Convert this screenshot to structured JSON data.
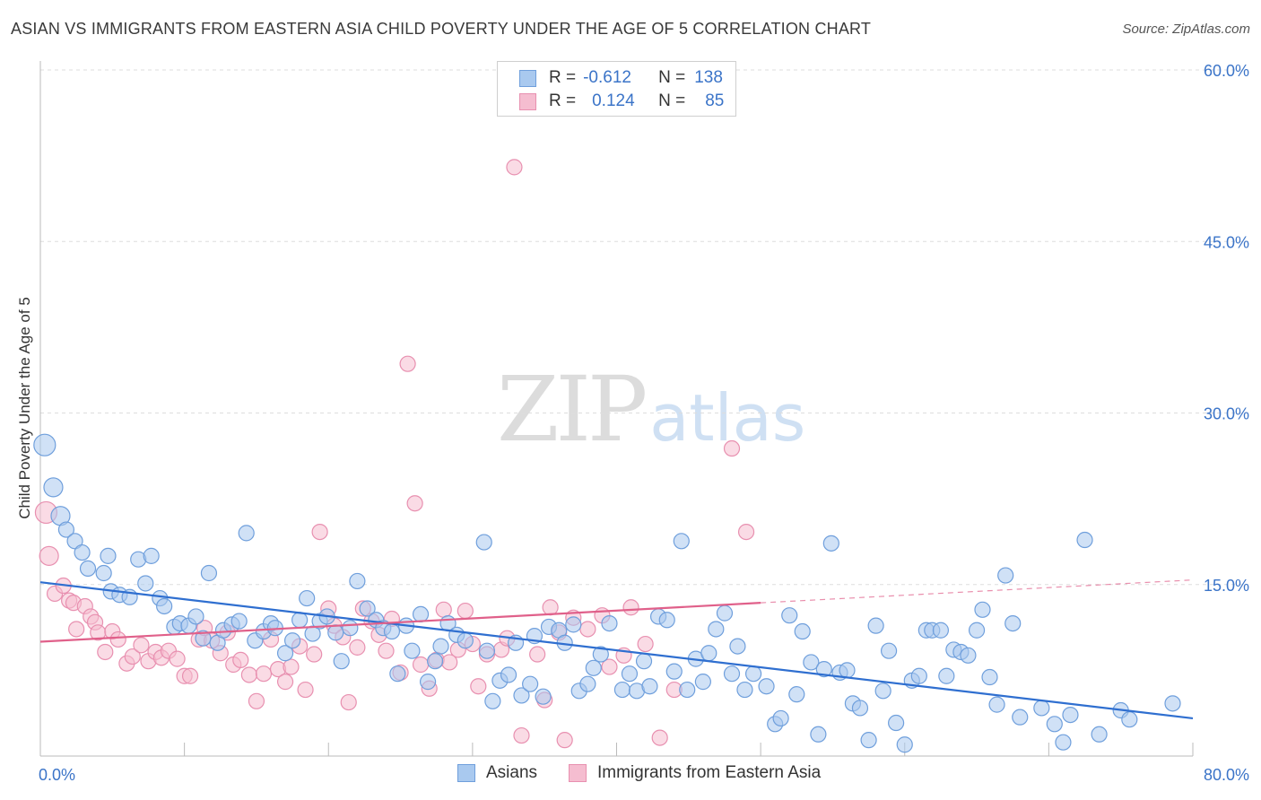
{
  "title": "ASIAN VS IMMIGRANTS FROM EASTERN ASIA CHILD POVERTY UNDER THE AGE OF 5 CORRELATION CHART",
  "source": "Source: ZipAtlas.com",
  "watermark": {
    "zip": "ZIP",
    "atlas": "atlas"
  },
  "legend_top": {
    "rows": [
      {
        "r_label": "R =",
        "r_value": "-0.612",
        "n_label": "N =",
        "n_value": "138"
      },
      {
        "r_label": "R =",
        "r_value": "0.124",
        "n_label": "N =",
        "n_value": "85"
      }
    ]
  },
  "colors": {
    "blue_fill": "#a9c9ef",
    "blue_stroke": "#6f9fdc",
    "blue_line": "#2f6fd0",
    "pink_fill": "#f5bdd0",
    "pink_stroke": "#e890b0",
    "pink_line": "#e0608a",
    "grid": "#dddddd",
    "tick_text": "#3b74c8"
  },
  "chart_data": {
    "type": "scatter",
    "title": "ASIAN VS IMMIGRANTS FROM EASTERN ASIA CHILD POVERTY UNDER THE AGE OF 5 CORRELATION CHART",
    "xlabel": "",
    "ylabel": "Child Poverty Under the Age of 5",
    "xlim": [
      0,
      80
    ],
    "ylim": [
      0,
      60
    ],
    "x_tick_labels": [
      "0.0%",
      "80.0%"
    ],
    "y_ticks": [
      15,
      30,
      45,
      60
    ],
    "y_tick_labels": [
      "15.0%",
      "30.0%",
      "45.0%",
      "60.0%"
    ],
    "grid": true,
    "legend_position": "top-center",
    "series": [
      {
        "name": "Asians",
        "color": "#6f9fdc",
        "R": -0.612,
        "N": 138,
        "trend": {
          "x": [
            0,
            80
          ],
          "y": [
            15.2,
            3.3
          ]
        },
        "points": [
          [
            0.3,
            27.2
          ],
          [
            0.9,
            23.5
          ],
          [
            1.4,
            21
          ],
          [
            1.8,
            19.8
          ],
          [
            2.4,
            18.8
          ],
          [
            2.9,
            17.8
          ],
          [
            3.3,
            16.4
          ],
          [
            4.4,
            16
          ],
          [
            4.7,
            17.5
          ],
          [
            4.9,
            14.4
          ],
          [
            5.5,
            14.1
          ],
          [
            6.2,
            13.9
          ],
          [
            6.8,
            17.2
          ],
          [
            7.3,
            15.1
          ],
          [
            7.7,
            17.5
          ],
          [
            8.3,
            13.8
          ],
          [
            8.6,
            13.1
          ],
          [
            9.3,
            11.3
          ],
          [
            9.7,
            11.6
          ],
          [
            10.3,
            11.4
          ],
          [
            10.8,
            12.2
          ],
          [
            11.3,
            10.3
          ],
          [
            11.7,
            16
          ],
          [
            12.3,
            9.9
          ],
          [
            12.7,
            11
          ],
          [
            13.3,
            11.5
          ],
          [
            13.8,
            11.8
          ],
          [
            14.3,
            19.5
          ],
          [
            14.9,
            10.1
          ],
          [
            15.5,
            10.9
          ],
          [
            16.0,
            11.6
          ],
          [
            16.3,
            11.2
          ],
          [
            17.0,
            9.0
          ],
          [
            17.5,
            10.1
          ],
          [
            18.0,
            11.9
          ],
          [
            18.5,
            13.8
          ],
          [
            18.9,
            10.7
          ],
          [
            19.4,
            11.8
          ],
          [
            19.9,
            12.2
          ],
          [
            20.5,
            10.8
          ],
          [
            20.9,
            8.3
          ],
          [
            21.5,
            11.2
          ],
          [
            22.0,
            15.3
          ],
          [
            22.7,
            12.9
          ],
          [
            23.3,
            11.9
          ],
          [
            23.8,
            11.2
          ],
          [
            24.4,
            10.9
          ],
          [
            24.8,
            7.2
          ],
          [
            25.4,
            11.4
          ],
          [
            25.8,
            9.2
          ],
          [
            26.4,
            12.4
          ],
          [
            26.9,
            6.5
          ],
          [
            27.4,
            8.3
          ],
          [
            27.8,
            9.6
          ],
          [
            28.3,
            11.6
          ],
          [
            28.9,
            10.6
          ],
          [
            29.5,
            10.1
          ],
          [
            30.8,
            18.7
          ],
          [
            31.0,
            9.2
          ],
          [
            31.4,
            4.8
          ],
          [
            31.9,
            6.6
          ],
          [
            32.5,
            7.1
          ],
          [
            33.0,
            9.9
          ],
          [
            33.4,
            5.3
          ],
          [
            34.0,
            6.3
          ],
          [
            34.3,
            10.5
          ],
          [
            34.9,
            5.2
          ],
          [
            35.3,
            11.3
          ],
          [
            36.0,
            11.0
          ],
          [
            36.4,
            9.9
          ],
          [
            37.0,
            11.5
          ],
          [
            37.4,
            5.7
          ],
          [
            38.0,
            6.3
          ],
          [
            38.4,
            7.7
          ],
          [
            38.9,
            8.9
          ],
          [
            39.5,
            11.6
          ],
          [
            40.4,
            5.8
          ],
          [
            40.9,
            7.2
          ],
          [
            41.4,
            5.7
          ],
          [
            41.9,
            8.3
          ],
          [
            42.3,
            6.1
          ],
          [
            42.9,
            12.2
          ],
          [
            43.5,
            11.9
          ],
          [
            44.0,
            7.4
          ],
          [
            44.5,
            18.8
          ],
          [
            44.9,
            5.8
          ],
          [
            45.5,
            8.5
          ],
          [
            46.0,
            6.5
          ],
          [
            46.4,
            9.0
          ],
          [
            46.9,
            11.1
          ],
          [
            47.5,
            12.5
          ],
          [
            48.0,
            7.2
          ],
          [
            48.4,
            9.6
          ],
          [
            48.9,
            5.8
          ],
          [
            49.5,
            7.2
          ],
          [
            50.4,
            6.1
          ],
          [
            51.0,
            2.8
          ],
          [
            51.4,
            3.3
          ],
          [
            52.0,
            12.3
          ],
          [
            52.5,
            5.4
          ],
          [
            52.9,
            10.9
          ],
          [
            53.5,
            8.2
          ],
          [
            54.0,
            1.9
          ],
          [
            54.4,
            7.6
          ],
          [
            54.9,
            18.6
          ],
          [
            55.5,
            7.3
          ],
          [
            56.0,
            7.5
          ],
          [
            56.4,
            4.6
          ],
          [
            56.9,
            4.2
          ],
          [
            57.5,
            1.4
          ],
          [
            58.0,
            11.4
          ],
          [
            58.5,
            5.7
          ],
          [
            58.9,
            9.2
          ],
          [
            59.4,
            2.9
          ],
          [
            60.0,
            1.0
          ],
          [
            60.5,
            6.6
          ],
          [
            61.0,
            7.0
          ],
          [
            61.5,
            11.0
          ],
          [
            61.9,
            11.0
          ],
          [
            62.5,
            11.0
          ],
          [
            62.9,
            7.0
          ],
          [
            63.4,
            9.3
          ],
          [
            63.9,
            9.1
          ],
          [
            64.4,
            8.8
          ],
          [
            65.0,
            11.0
          ],
          [
            65.4,
            12.8
          ],
          [
            65.9,
            6.9
          ],
          [
            66.4,
            4.5
          ],
          [
            67.0,
            15.8
          ],
          [
            67.5,
            11.6
          ],
          [
            68.0,
            3.4
          ],
          [
            69.5,
            4.2
          ],
          [
            70.4,
            2.8
          ],
          [
            71.0,
            1.2
          ],
          [
            71.5,
            3.6
          ],
          [
            72.5,
            18.9
          ],
          [
            73.5,
            1.9
          ],
          [
            75.0,
            4.0
          ],
          [
            75.6,
            3.2
          ],
          [
            78.6,
            4.6
          ]
        ]
      },
      {
        "name": "Immigrants from Eastern Asia",
        "color": "#e890b0",
        "R": 0.124,
        "N": 85,
        "trend": {
          "x": [
            0,
            50
          ],
          "y": [
            10.0,
            13.4
          ]
        },
        "trend_dashed": {
          "x": [
            50,
            80
          ],
          "y": [
            13.4,
            15.4
          ]
        },
        "points": [
          [
            0.4,
            21.3
          ],
          [
            0.6,
            17.5
          ],
          [
            1.0,
            14.2
          ],
          [
            1.6,
            14.9
          ],
          [
            2.0,
            13.6
          ],
          [
            2.3,
            13.4
          ],
          [
            2.5,
            11.1
          ],
          [
            3.1,
            13.1
          ],
          [
            3.5,
            12.2
          ],
          [
            3.8,
            11.7
          ],
          [
            4.0,
            10.8
          ],
          [
            4.5,
            9.1
          ],
          [
            5.0,
            10.9
          ],
          [
            5.4,
            10.2
          ],
          [
            6.0,
            8.1
          ],
          [
            6.4,
            8.7
          ],
          [
            7.0,
            9.7
          ],
          [
            7.5,
            8.3
          ],
          [
            8.0,
            9.1
          ],
          [
            8.4,
            8.6
          ],
          [
            8.9,
            9.2
          ],
          [
            9.5,
            8.5
          ],
          [
            10.0,
            7.0
          ],
          [
            10.4,
            7.0
          ],
          [
            11.0,
            10.2
          ],
          [
            11.4,
            11.2
          ],
          [
            11.9,
            10.1
          ],
          [
            12.5,
            9.0
          ],
          [
            13.0,
            10.8
          ],
          [
            13.4,
            8.0
          ],
          [
            13.9,
            8.4
          ],
          [
            14.5,
            7.1
          ],
          [
            15.0,
            4.8
          ],
          [
            15.5,
            7.2
          ],
          [
            16.0,
            10.2
          ],
          [
            16.5,
            7.6
          ],
          [
            17.0,
            6.5
          ],
          [
            17.4,
            7.8
          ],
          [
            18.0,
            9.6
          ],
          [
            18.4,
            5.8
          ],
          [
            19.0,
            8.9
          ],
          [
            19.4,
            19.6
          ],
          [
            20.0,
            12.9
          ],
          [
            20.4,
            11.4
          ],
          [
            21.0,
            10.4
          ],
          [
            21.4,
            4.7
          ],
          [
            22.0,
            9.5
          ],
          [
            22.4,
            12.9
          ],
          [
            23.0,
            11.8
          ],
          [
            23.5,
            10.6
          ],
          [
            24.0,
            9.2
          ],
          [
            24.4,
            12.0
          ],
          [
            25.0,
            7.3
          ],
          [
            25.5,
            34.3
          ],
          [
            26.0,
            22.1
          ],
          [
            26.4,
            8.0
          ],
          [
            27.0,
            5.9
          ],
          [
            27.5,
            8.4
          ],
          [
            28.0,
            12.8
          ],
          [
            28.4,
            8.2
          ],
          [
            29.0,
            9.3
          ],
          [
            29.5,
            12.7
          ],
          [
            30.0,
            9.8
          ],
          [
            30.4,
            6.1
          ],
          [
            31.0,
            8.9
          ],
          [
            32.0,
            9.3
          ],
          [
            32.4,
            10.3
          ],
          [
            32.9,
            51.5
          ],
          [
            33.4,
            1.8
          ],
          [
            34.5,
            8.9
          ],
          [
            35.0,
            4.9
          ],
          [
            35.4,
            13.0
          ],
          [
            36.0,
            10.8
          ],
          [
            36.4,
            1.4
          ],
          [
            37.0,
            12.1
          ],
          [
            38.0,
            11.1
          ],
          [
            39.0,
            12.3
          ],
          [
            39.5,
            7.8
          ],
          [
            40.5,
            8.8
          ],
          [
            41.0,
            13.0
          ],
          [
            42.0,
            9.8
          ],
          [
            43.0,
            1.6
          ],
          [
            44.0,
            5.8
          ],
          [
            48.0,
            26.9
          ],
          [
            49.0,
            19.6
          ]
        ]
      }
    ]
  },
  "bottom_legend": [
    {
      "label": "Asians"
    },
    {
      "label": "Immigrants from Eastern Asia"
    }
  ]
}
